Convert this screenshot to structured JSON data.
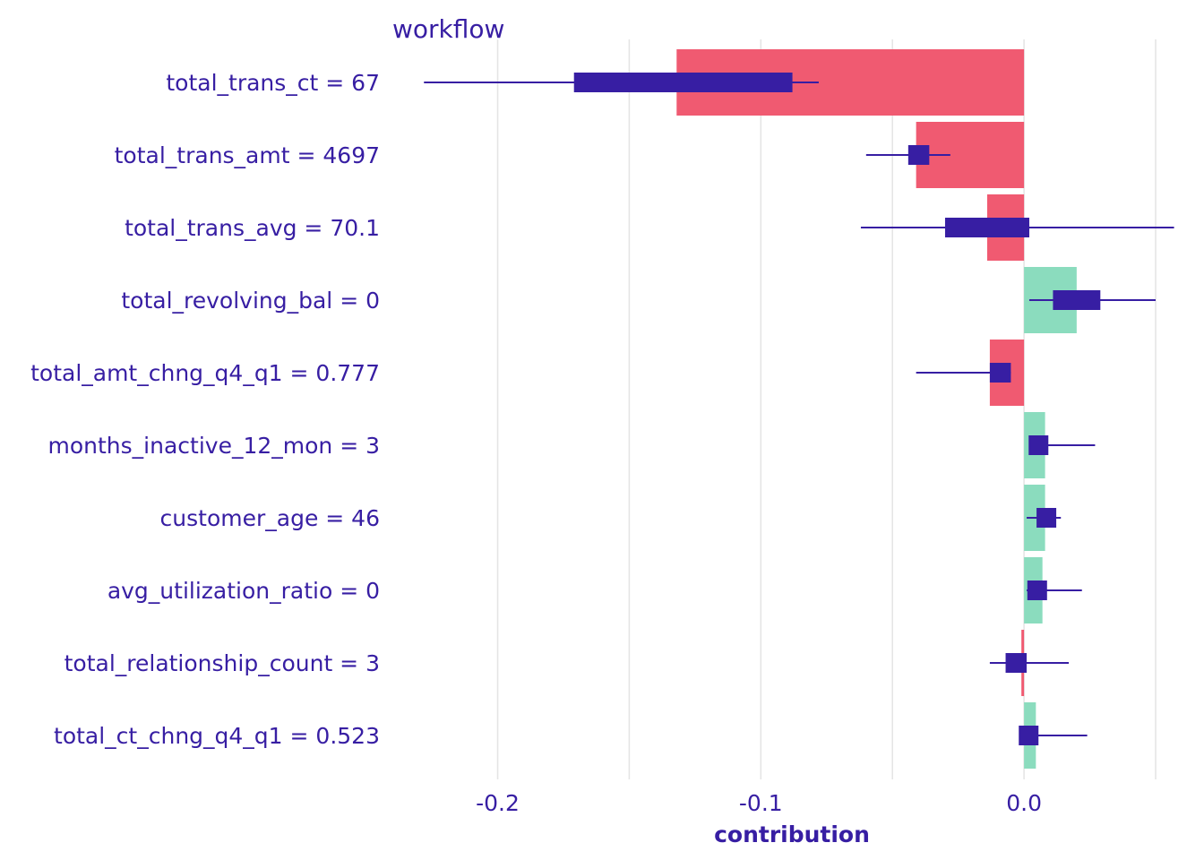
{
  "chart_data": {
    "type": "bar",
    "facet_title": "workflow",
    "xlabel": "contribution",
    "ylabel": "",
    "xlim": [
      -0.24,
      0.05
    ],
    "x_ticks": [
      -0.2,
      -0.15,
      -0.1,
      -0.05,
      0.0,
      0.05
    ],
    "x_tick_labels": [
      "-0.2",
      "-0.1",
      "0.0"
    ],
    "grid": true,
    "legend": "none",
    "colors": {
      "negative": "#f05a71",
      "positive": "#8bdcbe",
      "boxplot": "#371ea3",
      "text": "#371ea3",
      "grid": "#e5e5e5"
    },
    "categories": [
      "total_trans_ct = 67",
      "total_trans_amt = 4697",
      "total_trans_avg = 70.1",
      "total_revolving_bal = 0",
      "total_amt_chng_q4_q1 = 0.777",
      "months_inactive_12_mon = 3",
      "customer_age = 46",
      "avg_utilization_ratio = 0",
      "total_relationship_count = 3",
      "total_ct_chng_q4_q1 = 0.523"
    ],
    "values": [
      -0.132,
      -0.041,
      -0.014,
      0.02,
      -0.013,
      0.008,
      0.008,
      0.007,
      -0.001,
      0.0045
    ],
    "boxplots": [
      {
        "whisker_low": -0.228,
        "q1": -0.171,
        "q3": -0.088,
        "whisker_high": -0.078
      },
      {
        "whisker_low": -0.06,
        "q1": -0.044,
        "q3": -0.036,
        "whisker_high": -0.028
      },
      {
        "whisker_low": -0.062,
        "q1": -0.03,
        "q3": 0.002,
        "whisker_high": 0.057
      },
      {
        "whisker_low": 0.002,
        "q1": 0.011,
        "q3": 0.029,
        "whisker_high": 0.05
      },
      {
        "whisker_low": -0.041,
        "q1": -0.013,
        "q3": -0.005,
        "whisker_high": -0.005
      },
      {
        "whisker_low": 0.002,
        "q1": 0.002,
        "q3": 0.009,
        "whisker_high": 0.027
      },
      {
        "whisker_low": 0.001,
        "q1": 0.006,
        "q3": 0.011,
        "whisker_high": 0.014
      },
      {
        "whisker_low": 0.001,
        "q1": 0.002,
        "q3": 0.008,
        "whisker_high": 0.022
      },
      {
        "whisker_low": -0.013,
        "q1": -0.007,
        "q3": 0.001,
        "whisker_high": 0.017
      },
      {
        "whisker_low": 0.0,
        "q1": 0.0,
        "q3": 0.0035,
        "whisker_high": 0.024
      }
    ]
  }
}
